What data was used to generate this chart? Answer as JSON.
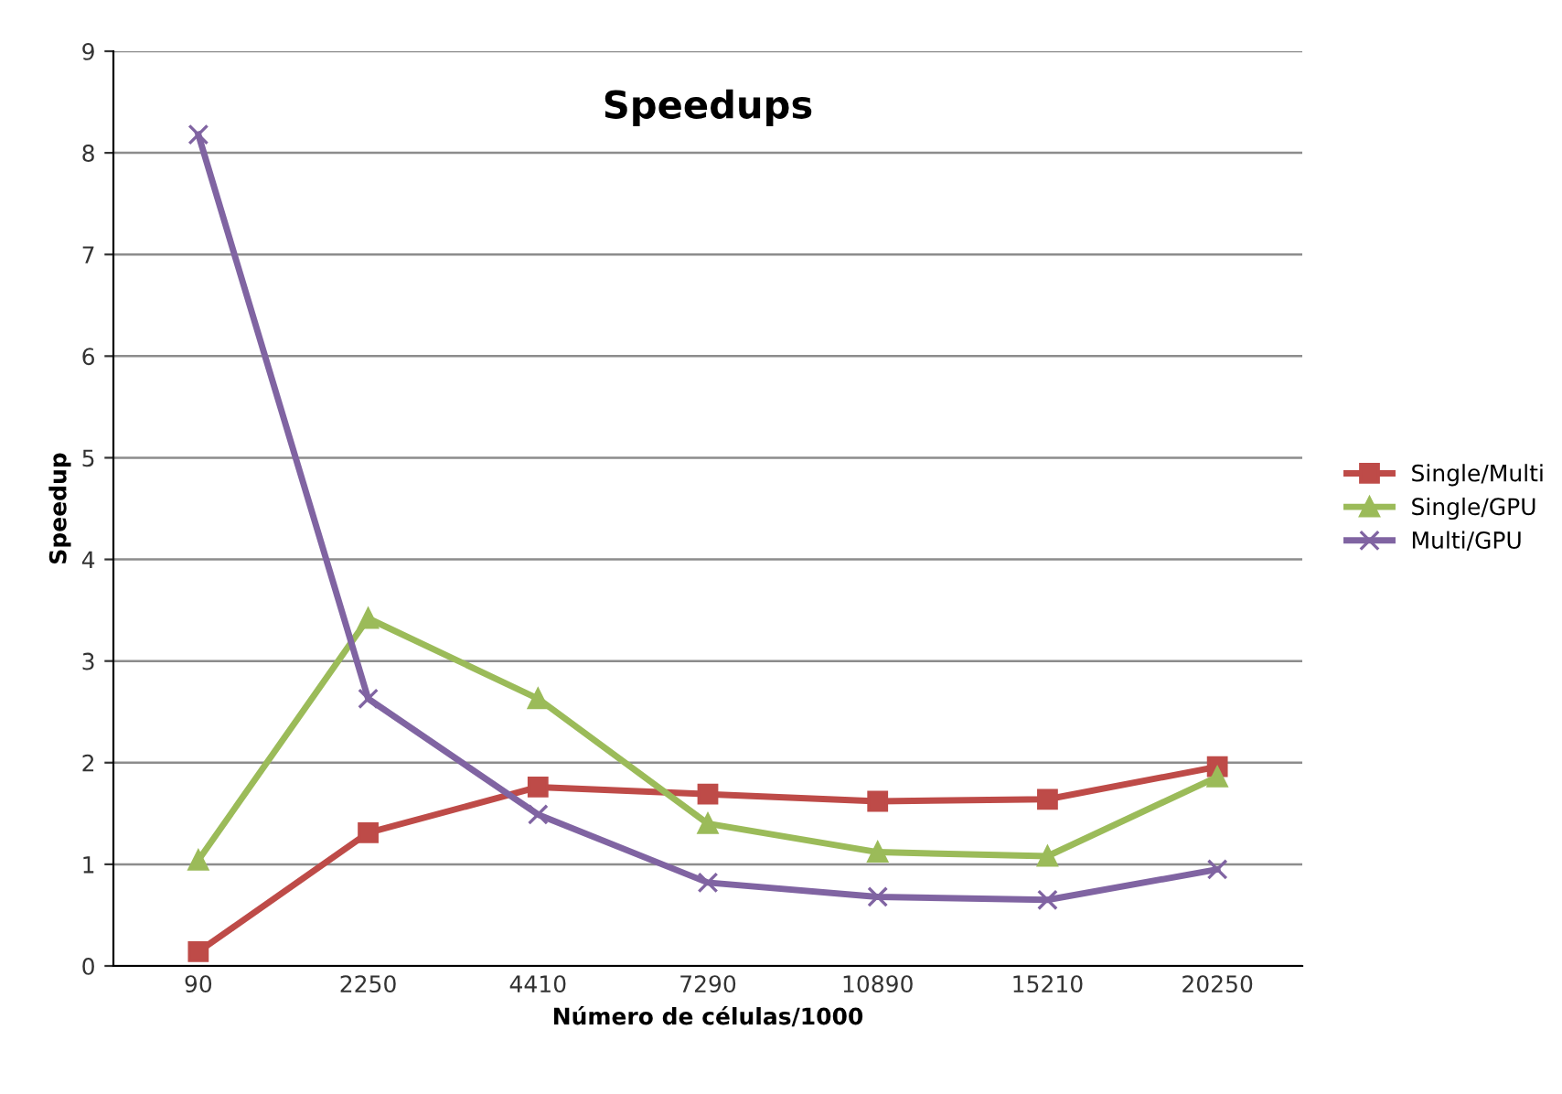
{
  "chart_data": {
    "type": "line",
    "title": "Speedups",
    "xlabel": "Número de células/1000",
    "ylabel": "Speedup",
    "categories": [
      "90",
      "2250",
      "4410",
      "7290",
      "10890",
      "15210",
      "20250"
    ],
    "series": [
      {
        "name": "Single/Multi",
        "color": "#be4b48",
        "marker": "square",
        "values": [
          0.14,
          1.31,
          1.76,
          1.69,
          1.62,
          1.64,
          1.96
        ]
      },
      {
        "name": "Single/GPU",
        "color": "#9bbb59",
        "marker": "triangle",
        "values": [
          1.04,
          3.42,
          2.63,
          1.4,
          1.12,
          1.08,
          1.86
        ]
      },
      {
        "name": "Multi/GPU",
        "color": "#8064a2",
        "marker": "cross",
        "values": [
          8.18,
          2.63,
          1.49,
          0.82,
          0.68,
          0.65,
          0.95
        ]
      }
    ],
    "ylim": [
      0,
      9
    ],
    "yticks": [
      0,
      1,
      2,
      3,
      4,
      5,
      6,
      7,
      8,
      9
    ],
    "grid": "y",
    "legend": "right",
    "line_style": "solid"
  }
}
